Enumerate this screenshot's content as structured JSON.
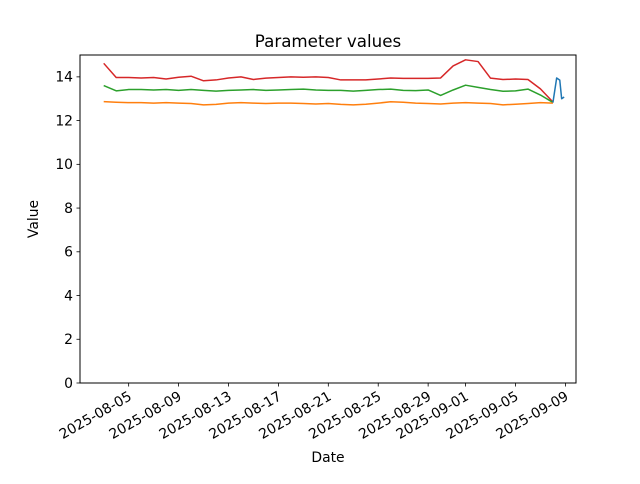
{
  "chart_data": {
    "type": "line",
    "title": "Parameter values",
    "xlabel": "Date",
    "ylabel": "Value",
    "grid": false,
    "legend": false,
    "x_offsets_from": "2025-08-01",
    "xlim": [
      0.1,
      39.85
    ],
    "ylim": [
      0,
      15
    ],
    "yticks": [
      0,
      2,
      4,
      6,
      8,
      10,
      12,
      14
    ],
    "xticks": [
      {
        "x": 4,
        "label": "2025-08-05"
      },
      {
        "x": 8,
        "label": "2025-08-09"
      },
      {
        "x": 12,
        "label": "2025-08-13"
      },
      {
        "x": 16,
        "label": "2025-08-17"
      },
      {
        "x": 20,
        "label": "2025-08-21"
      },
      {
        "x": 24,
        "label": "2025-08-25"
      },
      {
        "x": 28,
        "label": "2025-08-29"
      },
      {
        "x": 31,
        "label": "2025-09-01"
      },
      {
        "x": 35,
        "label": "2025-09-05"
      },
      {
        "x": 39,
        "label": "2025-09-09"
      }
    ],
    "series": [
      {
        "name": "red",
        "color": "#d62728",
        "x": [
          2,
          3,
          4,
          5,
          6,
          7,
          8,
          9,
          10,
          11,
          12,
          13,
          14,
          15,
          16,
          17,
          18,
          19,
          20,
          21,
          22,
          23,
          24,
          25,
          26,
          27,
          28,
          29,
          30,
          31,
          32,
          33,
          34,
          35,
          36,
          37,
          38
        ],
        "y": [
          14.62,
          13.97,
          13.97,
          13.95,
          13.97,
          13.9,
          13.98,
          14.03,
          13.82,
          13.86,
          13.95,
          14.0,
          13.88,
          13.94,
          13.97,
          14.0,
          13.98,
          14.0,
          13.97,
          13.86,
          13.86,
          13.86,
          13.9,
          13.95,
          13.93,
          13.93,
          13.93,
          13.95,
          14.5,
          14.78,
          14.7,
          13.94,
          13.88,
          13.9,
          13.88,
          13.45,
          12.85
        ]
      },
      {
        "name": "green",
        "color": "#2ca02c",
        "x": [
          2,
          3,
          4,
          5,
          6,
          7,
          8,
          9,
          10,
          11,
          12,
          13,
          14,
          15,
          16,
          17,
          18,
          19,
          20,
          21,
          22,
          23,
          24,
          25,
          26,
          27,
          28,
          29,
          30,
          31,
          32,
          33,
          34,
          35,
          36,
          37,
          38
        ],
        "y": [
          13.6,
          13.36,
          13.42,
          13.42,
          13.4,
          13.42,
          13.38,
          13.42,
          13.38,
          13.35,
          13.38,
          13.4,
          13.42,
          13.38,
          13.4,
          13.42,
          13.44,
          13.4,
          13.38,
          13.38,
          13.35,
          13.38,
          13.42,
          13.44,
          13.38,
          13.37,
          13.4,
          13.15,
          13.4,
          13.62,
          13.52,
          13.42,
          13.34,
          13.36,
          13.44,
          13.17,
          12.83
        ]
      },
      {
        "name": "orange",
        "color": "#ff7f0e",
        "x": [
          2,
          3,
          4,
          5,
          6,
          7,
          8,
          9,
          10,
          11,
          12,
          13,
          14,
          15,
          16,
          17,
          18,
          19,
          20,
          21,
          22,
          23,
          24,
          25,
          26,
          27,
          28,
          29,
          30,
          31,
          32,
          33,
          34,
          35,
          36,
          37,
          38
        ],
        "y": [
          12.87,
          12.84,
          12.82,
          12.82,
          12.8,
          12.82,
          12.8,
          12.78,
          12.72,
          12.74,
          12.8,
          12.82,
          12.8,
          12.78,
          12.8,
          12.8,
          12.78,
          12.76,
          12.78,
          12.74,
          12.72,
          12.75,
          12.8,
          12.86,
          12.84,
          12.8,
          12.78,
          12.76,
          12.8,
          12.82,
          12.8,
          12.78,
          12.72,
          12.75,
          12.78,
          12.82,
          12.8
        ]
      },
      {
        "name": "blue",
        "color": "#1f77b4",
        "x": [
          38.0,
          38.3,
          38.55,
          38.7,
          38.9
        ],
        "y": [
          12.82,
          13.95,
          13.85,
          13.0,
          13.08
        ]
      }
    ]
  }
}
